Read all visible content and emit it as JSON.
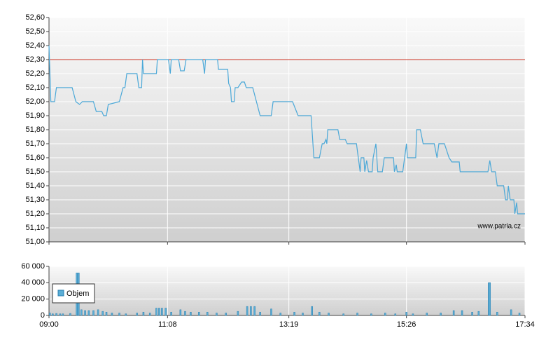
{
  "chart_data": [
    {
      "type": "line",
      "color": "#4aa8d8",
      "annotation": "www.patria.cz",
      "reference_line": 52.3,
      "reference_color": "#cc3322",
      "xlim": [
        "09:00",
        "17:34"
      ],
      "xticks": [
        "09:00",
        "11:08",
        "13:19",
        "15:26",
        "17:34"
      ],
      "ylim": [
        51.0,
        52.6
      ],
      "yticks": [
        {
          "value": 51.0,
          "label": "51,00"
        },
        {
          "value": 51.1,
          "label": "51,10"
        },
        {
          "value": 51.2,
          "label": "51,20"
        },
        {
          "value": 51.3,
          "label": "51,30"
        },
        {
          "value": 51.4,
          "label": "51,40"
        },
        {
          "value": 51.5,
          "label": "51,50"
        },
        {
          "value": 51.6,
          "label": "51,60"
        },
        {
          "value": 51.7,
          "label": "51,70"
        },
        {
          "value": 51.8,
          "label": "51,80"
        },
        {
          "value": 51.9,
          "label": "51,90"
        },
        {
          "value": 52.0,
          "label": "52,00"
        },
        {
          "value": 52.1,
          "label": "52,10"
        },
        {
          "value": 52.2,
          "label": "52,20"
        },
        {
          "value": 52.3,
          "label": "52,30"
        },
        {
          "value": 52.4,
          "label": "52,40"
        },
        {
          "value": 52.5,
          "label": "52,50"
        },
        {
          "value": 52.6,
          "label": "52,60"
        }
      ],
      "grid": true,
      "x": [
        "09:00",
        "09:02",
        "09:06",
        "09:08",
        "09:25",
        "09:29",
        "09:33",
        "09:36",
        "09:48",
        "09:51",
        "09:57",
        "09:59",
        "10:02",
        "10:04",
        "10:16",
        "10:20",
        "10:22",
        "10:24",
        "10:35",
        "10:37",
        "10:40",
        "10:41",
        "10:42",
        "10:56",
        "10:57",
        "11:09",
        "11:11",
        "11:12",
        "11:20",
        "11:22",
        "11:26",
        "11:28",
        "11:46",
        "11:48",
        "11:49",
        "12:02",
        "12:03",
        "12:13",
        "12:14",
        "12:16",
        "12:17",
        "12:20",
        "12:21",
        "12:24",
        "12:28",
        "12:31",
        "12:33",
        "12:40",
        "12:48",
        "13:00",
        "13:02",
        "13:23",
        "13:29",
        "13:43",
        "13:46",
        "13:52",
        "13:55",
        "13:57",
        "13:59",
        "14:00",
        "14:01",
        "14:12",
        "14:14",
        "14:20",
        "14:22",
        "14:32",
        "14:34",
        "14:36",
        "14:37",
        "14:40",
        "14:41",
        "14:43",
        "14:45",
        "14:49",
        "14:50",
        "14:53",
        "14:55",
        "15:00",
        "15:02",
        "15:12",
        "15:13",
        "15:15",
        "15:16",
        "15:22",
        "15:24",
        "15:26",
        "15:27",
        "15:36",
        "15:37",
        "15:41",
        "15:44",
        "15:56",
        "15:59",
        "16:01",
        "16:07",
        "16:12",
        "16:15",
        "16:23",
        "16:24",
        "16:54",
        "16:56",
        "16:58",
        "17:02",
        "17:04",
        "17:11",
        "17:13",
        "17:15",
        "17:16",
        "17:18",
        "17:22",
        "17:23",
        "17:25",
        "17:26",
        "17:34"
      ],
      "values": [
        52.4,
        52.0,
        52.0,
        52.1,
        52.1,
        52.0,
        51.98,
        52.0,
        52.0,
        51.93,
        51.93,
        51.9,
        51.9,
        51.98,
        52.0,
        52.1,
        52.1,
        52.2,
        52.2,
        52.1,
        52.1,
        52.3,
        52.2,
        52.2,
        52.3,
        52.3,
        52.2,
        52.3,
        52.3,
        52.22,
        52.22,
        52.3,
        52.3,
        52.2,
        52.3,
        52.3,
        52.23,
        52.23,
        52.13,
        52.1,
        52.0,
        52.0,
        52.1,
        52.1,
        52.14,
        52.14,
        52.1,
        52.1,
        51.9,
        51.9,
        52.0,
        52.0,
        51.9,
        51.9,
        51.6,
        51.6,
        51.7,
        51.7,
        51.73,
        51.7,
        51.8,
        51.8,
        51.73,
        51.73,
        51.7,
        51.7,
        51.6,
        51.5,
        51.6,
        51.6,
        51.5,
        51.58,
        51.5,
        51.5,
        51.6,
        51.7,
        51.5,
        51.5,
        51.6,
        51.6,
        51.5,
        51.55,
        51.5,
        51.5,
        51.6,
        51.7,
        51.6,
        51.6,
        51.8,
        51.8,
        51.7,
        51.7,
        51.6,
        51.7,
        51.7,
        51.6,
        51.57,
        51.57,
        51.5,
        51.5,
        51.58,
        51.5,
        51.5,
        51.4,
        51.4,
        51.3,
        51.3,
        51.4,
        51.3,
        51.3,
        51.2,
        51.28,
        51.2,
        51.2
      ]
    },
    {
      "type": "bar",
      "xlim": [
        "09:00",
        "17:34"
      ],
      "xticks": [
        "09:00",
        "11:08",
        "13:19",
        "15:26",
        "17:34"
      ],
      "ylim": [
        0,
        60000
      ],
      "yticks": [
        0,
        {
          "value": 20000,
          "label": "20 000"
        },
        {
          "value": 40000,
          "label": "40 000"
        },
        {
          "value": 60000,
          "label": "60 000"
        }
      ],
      "grid": true,
      "x": [
        "09:01",
        "09:04",
        "09:08",
        "09:12",
        "09:15",
        "09:23",
        "09:30",
        "09:32",
        "09:35",
        "09:39",
        "09:43",
        "09:48",
        "09:53",
        "09:58",
        "10:02",
        "10:08",
        "10:16",
        "10:23",
        "10:35",
        "10:42",
        "10:49",
        "10:56",
        "10:59",
        "11:02",
        "11:06",
        "11:12",
        "11:22",
        "11:27",
        "11:33",
        "11:42",
        "11:51",
        "12:01",
        "12:11",
        "12:24",
        "12:34",
        "12:38",
        "12:42",
        "12:48",
        "13:00",
        "13:10",
        "13:25",
        "13:34",
        "13:44",
        "13:52",
        "14:02",
        "14:18",
        "14:33",
        "14:48",
        "15:03",
        "15:14",
        "15:26",
        "15:33",
        "15:48",
        "16:03",
        "16:17",
        "16:26",
        "16:37",
        "16:44",
        "16:55",
        "16:56",
        "17:04",
        "17:19",
        "17:28"
      ],
      "series": [
        {
          "name": "Objem",
          "color": "#5aaed6",
          "values": [
            3000,
            2000,
            2500,
            2000,
            2000,
            2500,
            52000,
            52000,
            7000,
            6000,
            6000,
            6000,
            7000,
            5000,
            4000,
            3000,
            3000,
            2000,
            3000,
            4000,
            3000,
            9000,
            9000,
            9000,
            9000,
            4000,
            7000,
            5000,
            4000,
            4000,
            4000,
            3000,
            3000,
            5000,
            11000,
            11000,
            11000,
            4000,
            8000,
            3000,
            4000,
            3000,
            11000,
            4000,
            3000,
            2000,
            3000,
            2000,
            3000,
            2000,
            4000,
            2000,
            3000,
            3000,
            6000,
            6000,
            4000,
            5000,
            40000,
            40000,
            4000,
            7000,
            3000
          ]
        }
      ]
    }
  ]
}
